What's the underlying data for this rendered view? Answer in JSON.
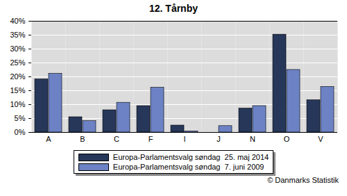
{
  "chart_data": {
    "type": "bar",
    "title": "12. Tårnby",
    "caption": "© Danmarks Statistik",
    "categories": [
      "A",
      "B",
      "C",
      "F",
      "I",
      "J",
      "N",
      "O",
      "V"
    ],
    "series": [
      {
        "name": "Europa-Parlamentsvalg søndag  25. maj 2014",
        "color": "#26375a",
        "values": [
          19.1,
          5.5,
          8.0,
          9.5,
          2.5,
          0,
          8.6,
          35.2,
          11.6
        ]
      },
      {
        "name": "Europa-Parlamentsvalg søndag  7. juni 2009",
        "color": "#6c82c4",
        "values": [
          21.1,
          4.1,
          10.7,
          16.1,
          0.4,
          2.3,
          9.5,
          22.5,
          16.4
        ]
      }
    ],
    "ylim": [
      0,
      40
    ],
    "yticks": [
      {
        "value": 0,
        "label": "0%"
      },
      {
        "value": 5,
        "label": "5%"
      },
      {
        "value": 10,
        "label": "10%"
      },
      {
        "value": 15,
        "label": "15%"
      },
      {
        "value": 20,
        "label": "20%"
      },
      {
        "value": 25,
        "label": "25%"
      },
      {
        "value": 30,
        "label": "30%"
      },
      {
        "value": 35,
        "label": "35%"
      },
      {
        "value": 40,
        "label": "40%"
      }
    ],
    "grid": true,
    "legend": "bottom"
  }
}
